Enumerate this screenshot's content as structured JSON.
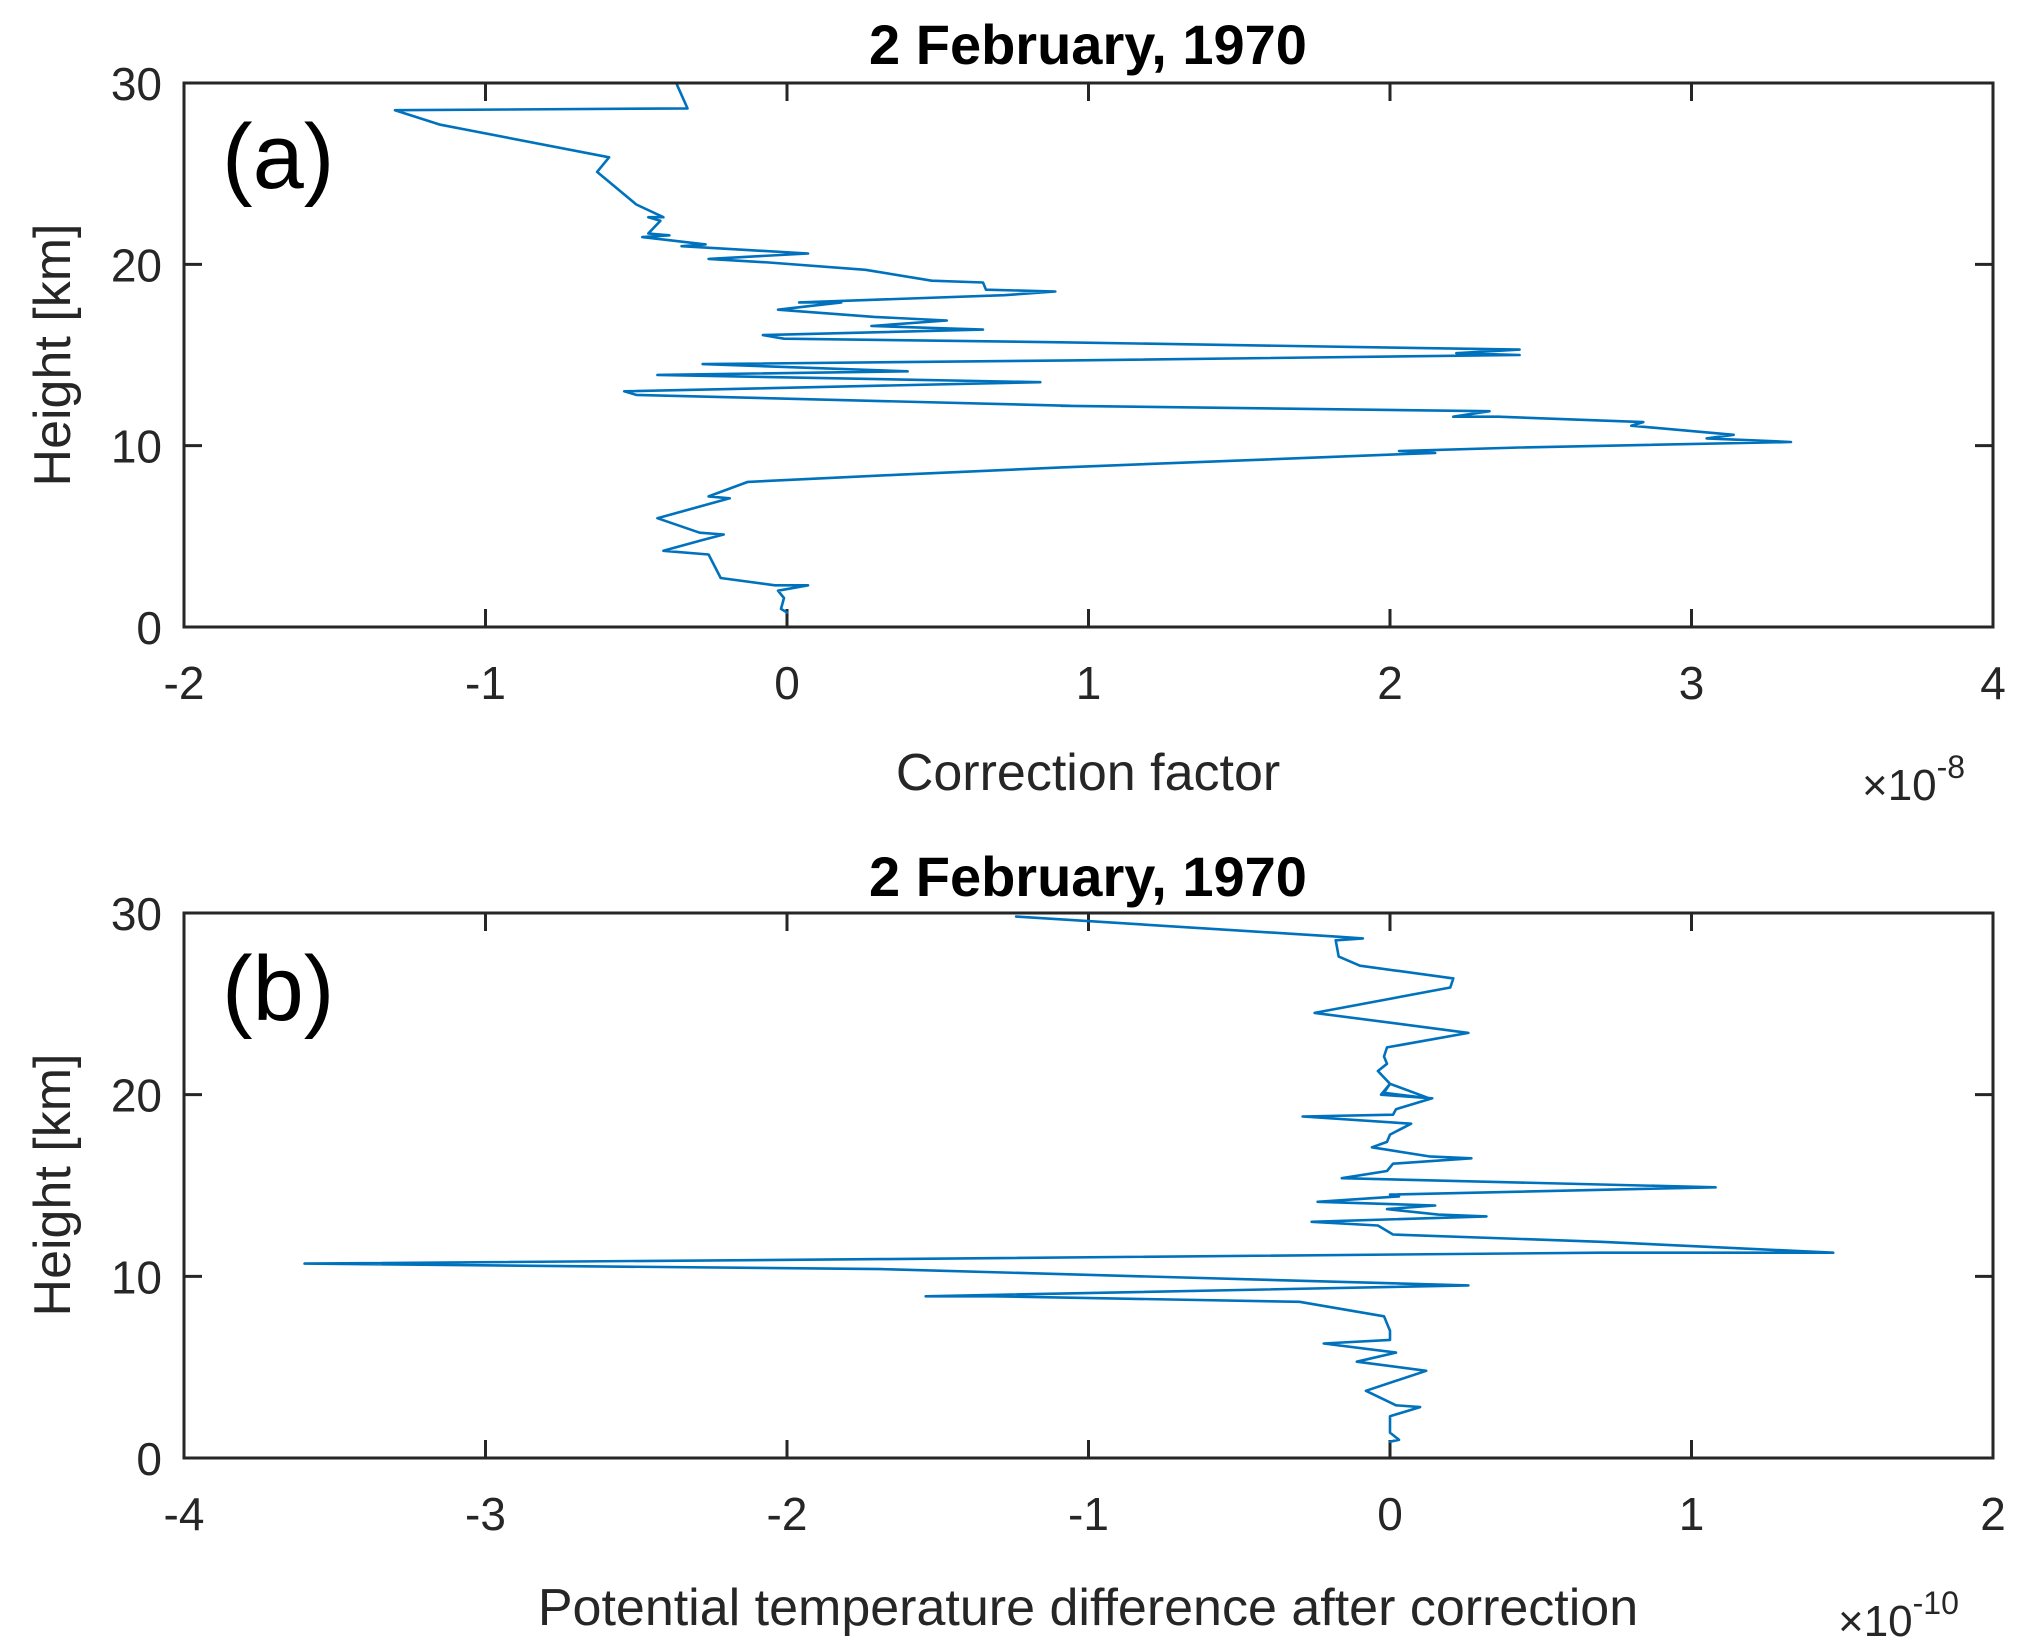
{
  "chart_data": [
    {
      "type": "line",
      "panel_label": "(a)",
      "title": "2 February, 1970",
      "xlabel": "Correction factor",
      "ylabel": "Height [km]",
      "x_exponent_prefix": "×10",
      "x_exponent": "-8",
      "xlim": [
        -2,
        4
      ],
      "ylim": [
        0,
        30
      ],
      "xticks": [
        -2,
        -1,
        0,
        1,
        2,
        3,
        4
      ],
      "xtick_labels": [
        "-2",
        "-1",
        "0",
        "1",
        "2",
        "3",
        "4"
      ],
      "yticks": [
        0,
        10,
        20,
        30
      ],
      "ytick_labels": [
        "0",
        "10",
        "20",
        "30"
      ],
      "grid": false,
      "legend": null,
      "series": [
        {
          "name": "correction factor profile",
          "color": "#0072BD",
          "x": [
            0.0,
            -0.02,
            -0.01,
            -0.03,
            0.07,
            -0.04,
            -0.22,
            -0.26,
            -0.41,
            -0.28,
            -0.21,
            -0.29,
            -0.43,
            -0.19,
            -0.26,
            -0.13,
            0.37,
            0.91,
            2.15,
            2.03,
            2.43,
            3.33,
            3.05,
            3.14,
            2.8,
            2.84,
            2.36,
            2.21,
            2.33,
            0.91,
            0.94,
            -0.5,
            -0.54,
            0.84,
            -0.43,
            0.4,
            -0.28,
            0.94,
            2.43,
            2.22,
            2.43,
            0.91,
            -0.01,
            -0.08,
            0.65,
            0.28,
            0.53,
            0.29,
            -0.03,
            0.18,
            0.04,
            0.72,
            0.89,
            0.66,
            0.65,
            0.48,
            0.26,
            -0.06,
            -0.26,
            0.07,
            -0.35,
            -0.27,
            -0.48,
            -0.39,
            -0.46,
            -0.42,
            -0.46,
            -0.41,
            -0.5,
            -0.63,
            -0.59,
            -1.15,
            -1.3,
            -0.33,
            -0.365
          ],
          "y": [
            0.8,
            1.0,
            1.6,
            2.0,
            2.3,
            2.3,
            2.7,
            4.0,
            4.2,
            4.8,
            5.1,
            5.2,
            6.0,
            7.1,
            7.2,
            8.0,
            8.4,
            8.8,
            9.6,
            9.7,
            9.9,
            10.2,
            10.4,
            10.6,
            11.1,
            11.3,
            11.6,
            11.6,
            11.9,
            12.2,
            12.2,
            12.8,
            13.0,
            13.5,
            13.9,
            14.1,
            14.5,
            14.7,
            15.0,
            15.1,
            15.3,
            15.7,
            15.9,
            16.1,
            16.4,
            16.6,
            16.9,
            17.1,
            17.5,
            17.9,
            17.9,
            18.3,
            18.5,
            18.6,
            19.0,
            19.1,
            19.7,
            20.1,
            20.3,
            20.6,
            21.0,
            21.1,
            21.5,
            21.6,
            21.7,
            22.4,
            22.6,
            22.6,
            23.3,
            25.1,
            25.9,
            27.7,
            28.5,
            28.6,
            29.9
          ]
        }
      ]
    },
    {
      "type": "line",
      "panel_label": "(b)",
      "title": "2 February, 1970",
      "xlabel": "Potential temperature difference after correction",
      "ylabel": "Height [km]",
      "x_exponent_prefix": "×10",
      "x_exponent": "-10",
      "xlim": [
        -4,
        2
      ],
      "ylim": [
        0,
        30
      ],
      "xticks": [
        -4,
        -3,
        -2,
        -1,
        0,
        1,
        2
      ],
      "xtick_labels": [
        "-4",
        "-3",
        "-2",
        "-1",
        "0",
        "1",
        "2"
      ],
      "yticks": [
        0,
        10,
        20,
        30
      ],
      "ytick_labels": [
        "0",
        "10",
        "20",
        "30"
      ],
      "grid": false,
      "legend": null,
      "series": [
        {
          "name": "potential temperature difference profile",
          "color": "#0072BD",
          "x": [
            0.0,
            0.03,
            0.0,
            0.0,
            0.1,
            0.02,
            -0.08,
            0.12,
            -0.11,
            0.02,
            -0.22,
            0.0,
            0.0,
            -0.02,
            -0.3,
            -1.32,
            -1.54,
            0.26,
            -1.69,
            -3.6,
            -1.69,
            0.7,
            1.47,
            0.7,
            0.01,
            -0.04,
            -0.26,
            0.32,
            0.16,
            -0.01,
            0.15,
            -0.24,
            0.03,
            0.0,
            1.08,
            -0.16,
            -0.01,
            0.01,
            0.27,
            0.13,
            -0.06,
            -0.01,
            0.0,
            0.07,
            -0.29,
            0.01,
            0.02,
            0.14,
            -0.03,
            0.0,
            0.13,
            -0.02,
            0.0,
            -0.04,
            -0.01,
            -0.02,
            -0.01,
            0.26,
            -0.25,
            0.2,
            0.21,
            -0.1,
            -0.17,
            -0.18,
            -0.09,
            -0.18,
            -1.24
          ],
          "y": [
            0.9,
            1.0,
            1.4,
            2.3,
            2.8,
            2.9,
            3.7,
            4.8,
            5.3,
            5.8,
            6.3,
            6.5,
            7.0,
            7.8,
            8.6,
            8.9,
            8.9,
            9.5,
            10.4,
            10.7,
            10.95,
            11.3,
            11.3,
            11.9,
            12.3,
            12.8,
            13.0,
            13.3,
            13.4,
            13.7,
            13.9,
            14.1,
            14.4,
            14.5,
            14.9,
            15.4,
            15.8,
            16.2,
            16.5,
            16.6,
            17.1,
            17.4,
            17.8,
            18.4,
            18.8,
            18.9,
            19.2,
            19.8,
            20.0,
            20.6,
            19.8,
            20.1,
            20.6,
            21.3,
            21.7,
            22.1,
            22.6,
            23.4,
            24.5,
            25.9,
            26.4,
            27.1,
            27.6,
            28.5,
            28.6,
            28.7,
            29.8
          ]
        }
      ]
    }
  ]
}
